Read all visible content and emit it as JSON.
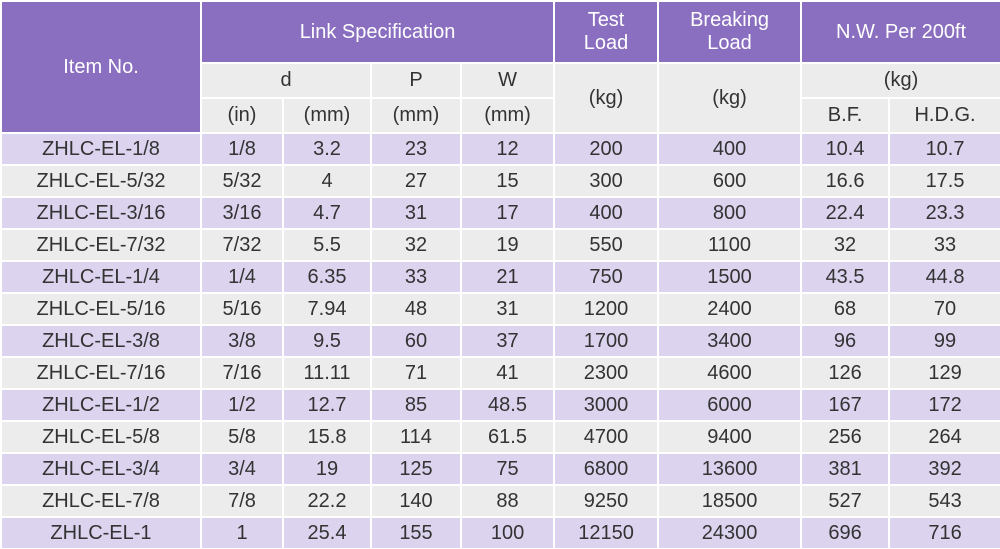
{
  "header": {
    "item_no": "Item No.",
    "link_specification": "Link Specification",
    "test_load": "Test\nLoad",
    "breaking_load": "Breaking\nLoad",
    "nw": "N.W. Per 200ft",
    "d": "d",
    "p": "P",
    "w": "W",
    "d_unit_in": "(in)",
    "d_unit_mm": "(mm)",
    "p_unit": "(mm)",
    "w_unit": "(mm)",
    "test_load_unit": "(kg)",
    "breaking_load_unit": "(kg)",
    "nw_unit": "(kg)",
    "bf": "B.F.",
    "hdg": "H.D.G."
  },
  "table": {
    "rows": [
      [
        "ZHLC-EL-1/8",
        "1/8",
        "3.2",
        "23",
        "12",
        "200",
        "400",
        "10.4",
        "10.7"
      ],
      [
        "ZHLC-EL-5/32",
        "5/32",
        "4",
        "27",
        "15",
        "300",
        "600",
        "16.6",
        "17.5"
      ],
      [
        "ZHLC-EL-3/16",
        "3/16",
        "4.7",
        "31",
        "17",
        "400",
        "800",
        "22.4",
        "23.3"
      ],
      [
        "ZHLC-EL-7/32",
        "7/32",
        "5.5",
        "32",
        "19",
        "550",
        "1100",
        "32",
        "33"
      ],
      [
        "ZHLC-EL-1/4",
        "1/4",
        "6.35",
        "33",
        "21",
        "750",
        "1500",
        "43.5",
        "44.8"
      ],
      [
        "ZHLC-EL-5/16",
        "5/16",
        "7.94",
        "48",
        "31",
        "1200",
        "2400",
        "68",
        "70"
      ],
      [
        "ZHLC-EL-3/8",
        "3/8",
        "9.5",
        "60",
        "37",
        "1700",
        "3400",
        "96",
        "99"
      ],
      [
        "ZHLC-EL-7/16",
        "7/16",
        "11.11",
        "71",
        "41",
        "2300",
        "4600",
        "126",
        "129"
      ],
      [
        "ZHLC-EL-1/2",
        "1/2",
        "12.7",
        "85",
        "48.5",
        "3000",
        "6000",
        "167",
        "172"
      ],
      [
        "ZHLC-EL-5/8",
        "5/8",
        "15.8",
        "114",
        "61.5",
        "4700",
        "9400",
        "256",
        "264"
      ],
      [
        "ZHLC-EL-3/4",
        "3/4",
        "19",
        "125",
        "75",
        "6800",
        "13600",
        "381",
        "392"
      ],
      [
        "ZHLC-EL-7/8",
        "7/8",
        "22.2",
        "140",
        "88",
        "9250",
        "18500",
        "527",
        "543"
      ],
      [
        "ZHLC-EL-1",
        "1",
        "25.4",
        "155",
        "100",
        "12150",
        "24300",
        "696",
        "716"
      ]
    ]
  }
}
